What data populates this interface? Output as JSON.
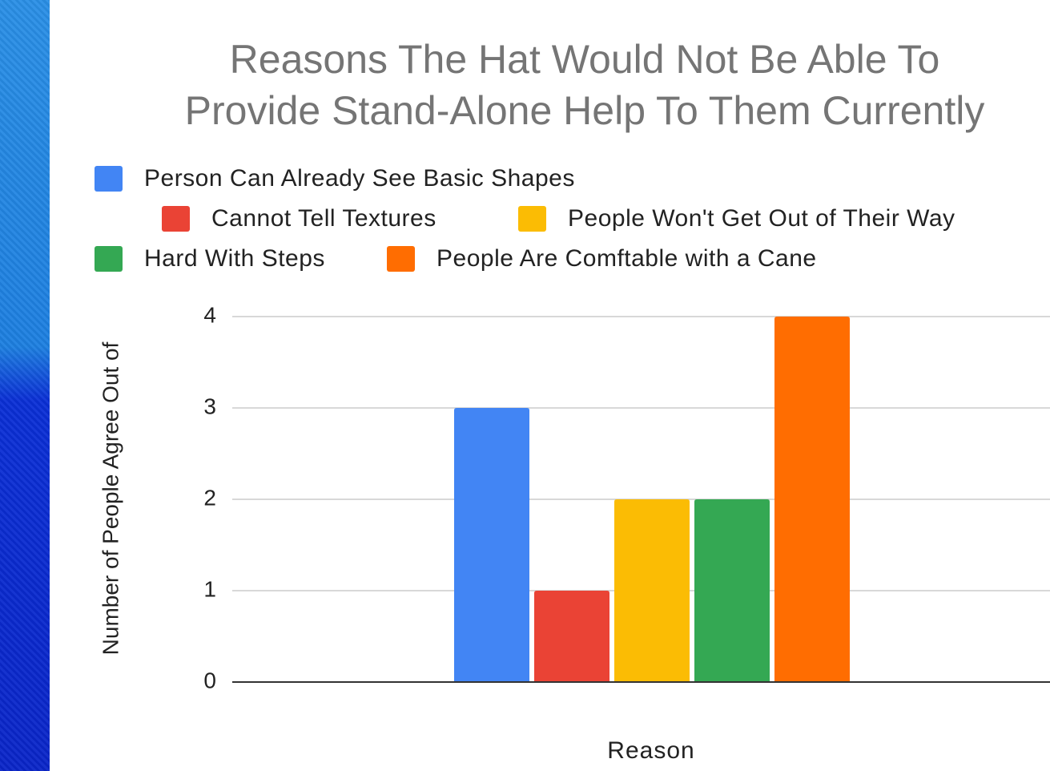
{
  "chart_data": {
    "type": "bar",
    "title_lines": [
      "Reasons The Hat Would Not Be Able To",
      "Provide Stand-Alone Help To Them Currently"
    ],
    "xlabel": "Reason",
    "ylabel": "Number of People Agree Out of",
    "ylim": [
      0,
      4
    ],
    "yticks": [
      0,
      1,
      2,
      3,
      4
    ],
    "grid": true,
    "legend_position": "top",
    "categories": [
      ""
    ],
    "series": [
      {
        "name": "Person Can Already See Basic Shapes",
        "values": [
          3
        ],
        "color": "#4285f4"
      },
      {
        "name": "Cannot Tell Textures",
        "values": [
          1
        ],
        "color": "#ea4335"
      },
      {
        "name": "People Won't Get Out of Their Way",
        "values": [
          2
        ],
        "color": "#fbbc04"
      },
      {
        "name": "Hard With Steps",
        "values": [
          2
        ],
        "color": "#34a853"
      },
      {
        "name": "People Are Comftable with a Cane",
        "values": [
          4
        ],
        "color": "#ff6d01"
      }
    ]
  }
}
